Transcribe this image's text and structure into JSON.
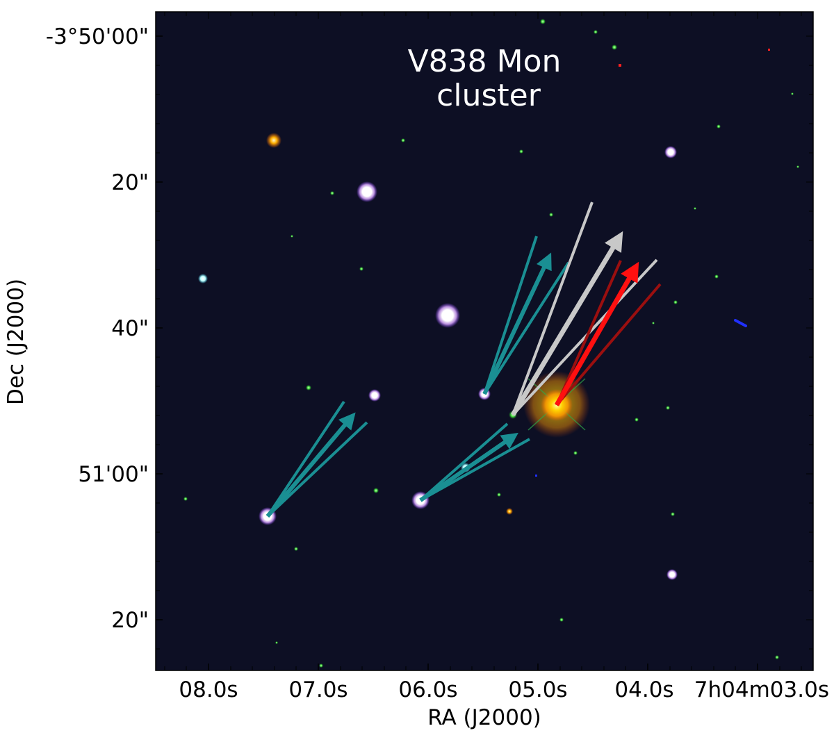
{
  "figure": {
    "title_line1": "V838 Mon",
    "title_line2": "cluster",
    "x_axis_label": "RA (J2000)",
    "y_axis_label": "Dec (J2000)",
    "x_tick_labels": [
      "08.0s",
      "07.0s",
      "06.0s",
      "05.0s",
      "04.0s",
      "7h04m03.0s"
    ],
    "y_tick_labels": [
      "-3°50'00\"",
      "20\"",
      "40\"",
      "51'00\"",
      "20\""
    ]
  },
  "colors": {
    "sky_background": "#0d0f24",
    "cyan_arrow": "#1a8f93",
    "white_arrow": "#c8c8c8",
    "red_arrow": "#ff1010",
    "dark_red_arrow": "#9b0f0f",
    "title_text": "#ffffff",
    "axis_text": "#000000"
  }
}
